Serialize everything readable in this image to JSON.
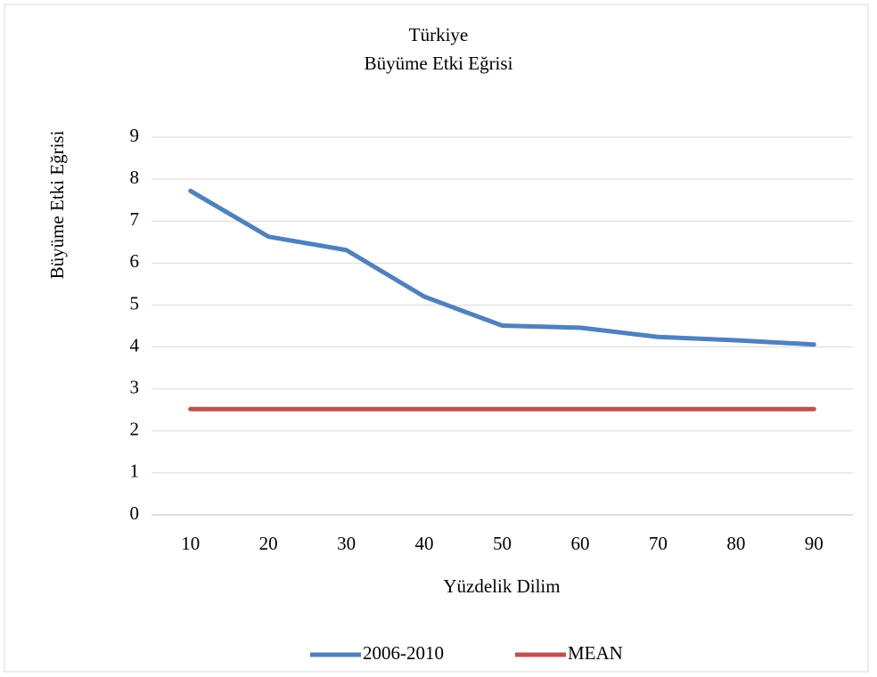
{
  "chart_data": {
    "type": "line",
    "title": "Türkiye",
    "subtitle": "Büyüme Etki Eğrisi",
    "y_axis_label": "Büyüme Etki Eğrisi",
    "x_axis_label": "Yüzdelik Dilim",
    "categories": [
      "10",
      "20",
      "30",
      "40",
      "50",
      "60",
      "70",
      "80",
      "90"
    ],
    "series": [
      {
        "name": "2006-2010",
        "color": "#4f81bd",
        "values": [
          7.72,
          6.63,
          6.31,
          5.2,
          4.51,
          4.46,
          4.24,
          4.16,
          4.06
        ]
      },
      {
        "name": "MEAN",
        "color": "#c0504d",
        "values": [
          2.52,
          2.52,
          2.52,
          2.52,
          2.52,
          2.52,
          2.52,
          2.52,
          2.52
        ]
      }
    ],
    "ylim": [
      0,
      9
    ],
    "yticks": [
      0,
      1,
      2,
      3,
      4,
      5,
      6,
      7,
      8,
      9
    ],
    "grid": true,
    "legend": "bottom"
  }
}
